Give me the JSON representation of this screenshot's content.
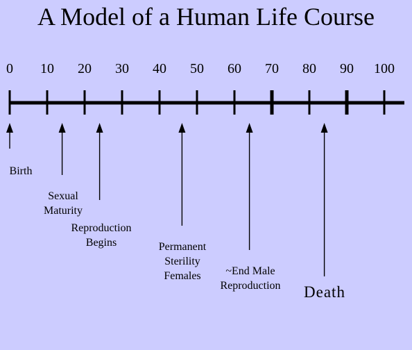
{
  "title": "A Model of a Human Life Course",
  "axis": {
    "ticks": [
      "0",
      "10",
      "20",
      "30",
      "40",
      "50",
      "60",
      "70",
      "80",
      "90",
      "100"
    ]
  },
  "events": [
    {
      "age": 0,
      "label": "Birth"
    },
    {
      "age": 14,
      "label": "Sexual Maturity"
    },
    {
      "age": 24,
      "label": "Reproduction Begins"
    },
    {
      "age": 46,
      "label": "Permanent Sterility Females"
    },
    {
      "age": 64,
      "label": "~End Male Reproduction"
    },
    {
      "age": 84,
      "label": "Death"
    }
  ]
}
